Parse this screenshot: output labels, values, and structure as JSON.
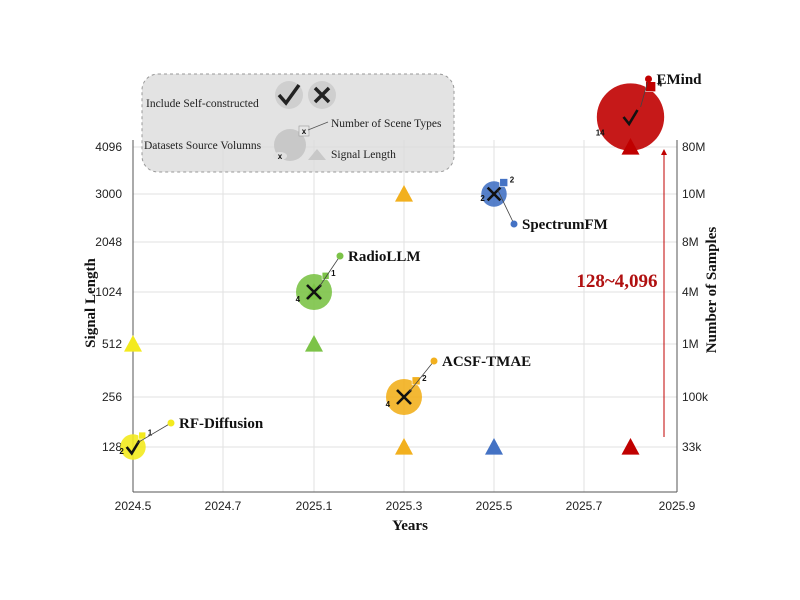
{
  "chart_data": {
    "type": "scatter",
    "xlabel": "Years",
    "ylabel": "Signal Length",
    "y2label": "Number of Samples",
    "x_ticks": [
      2024.5,
      2024.7,
      2025.1,
      2025.3,
      2025.5,
      2025.7,
      2025.9
    ],
    "y_ticks": [
      "128",
      "256",
      "512",
      "1024",
      "2048",
      "3000",
      "4096"
    ],
    "y2_ticks": [
      "33k",
      "100k",
      "1M",
      "4M",
      "8M",
      "10M",
      "80M"
    ],
    "grid": true,
    "legend": {
      "placement": "top-left",
      "items": [
        {
          "label": "Include Self-constructed",
          "icons": [
            "check-icon",
            "cross-icon"
          ]
        },
        {
          "label": "Number of Scene Types",
          "icon": "scene-badge-icon"
        },
        {
          "label": "Datasets Source Volumns",
          "icon": "volume-circle-icon"
        },
        {
          "label": "Signal Length",
          "icon": "triangle-icon"
        }
      ]
    },
    "models": [
      {
        "name": "RF-Diffusion",
        "x": 2024.5,
        "samples": "33k",
        "self_constructed": true,
        "scene_types": 1,
        "source_volumes": 2,
        "signal_lengths": [
          "512"
        ],
        "color": "#f3ea1e"
      },
      {
        "name": "RadioLLM",
        "x": 2025.1,
        "samples": "4M",
        "self_constructed": false,
        "scene_types": 1,
        "source_volumes": 4,
        "signal_lengths": [
          "512",
          "1024"
        ],
        "color": "#7cc348"
      },
      {
        "name": "ACSF-TMAE",
        "x": 2025.3,
        "samples": "100k",
        "self_constructed": false,
        "scene_types": 2,
        "source_volumes": 4,
        "signal_lengths": [
          "128",
          "3000"
        ],
        "color": "#f2b01e"
      },
      {
        "name": "SpectrumFM",
        "x": 2025.5,
        "samples": "10M",
        "self_constructed": false,
        "scene_types": 2,
        "source_volumes": 2,
        "signal_lengths": [
          "128"
        ],
        "color": "#4472c4"
      },
      {
        "name": "EMind",
        "x": 2025.8,
        "samples": "80M",
        "self_constructed": true,
        "scene_types": 4,
        "source_volumes": 14,
        "signal_lengths": [
          "128",
          "4096"
        ],
        "color": "#c00000"
      }
    ],
    "annotation": "128~4,096"
  }
}
